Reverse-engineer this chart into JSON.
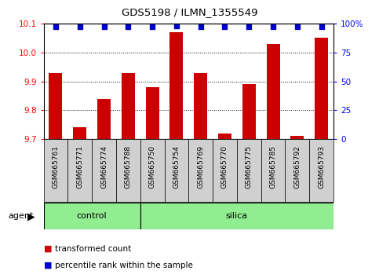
{
  "title": "GDS5198 / ILMN_1355549",
  "samples": [
    "GSM665761",
    "GSM665771",
    "GSM665774",
    "GSM665788",
    "GSM665750",
    "GSM665754",
    "GSM665769",
    "GSM665770",
    "GSM665775",
    "GSM665785",
    "GSM665792",
    "GSM665793"
  ],
  "transformed_counts": [
    9.93,
    9.74,
    9.84,
    9.93,
    9.88,
    10.07,
    9.93,
    9.72,
    9.89,
    10.03,
    9.71,
    10.05
  ],
  "percentile_ranks": [
    97,
    97,
    97,
    97,
    97,
    98,
    97,
    97,
    97,
    97,
    97,
    97
  ],
  "groups": [
    "control",
    "control",
    "control",
    "control",
    "silica",
    "silica",
    "silica",
    "silica",
    "silica",
    "silica",
    "silica",
    "silica"
  ],
  "ylim_left": [
    9.7,
    10.1
  ],
  "ylim_right": [
    0,
    100
  ],
  "yticks_left": [
    9.7,
    9.8,
    9.9,
    10.0,
    10.1
  ],
  "yticks_right": [
    0,
    25,
    50,
    75,
    100
  ],
  "ytick_labels_right": [
    "0",
    "25",
    "50",
    "75",
    "100%"
  ],
  "bar_color": "#cc0000",
  "dot_color": "#0000cc",
  "control_color": "#90ee90",
  "silica_color": "#90ee90",
  "bar_width": 0.55,
  "legend_items": [
    {
      "label": "transformed count",
      "color": "#cc0000"
    },
    {
      "label": "percentile rank within the sample",
      "color": "#0000cc"
    }
  ],
  "agent_label": "agent",
  "control_label": "control",
  "silica_label": "silica",
  "n_control": 4,
  "n_silica": 8
}
